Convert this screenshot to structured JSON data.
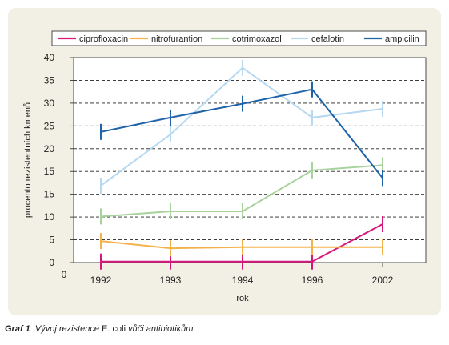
{
  "chart_data": {
    "type": "line",
    "title": "",
    "xlabel": "rok",
    "ylabel": "procento rezistentních kmenů",
    "categories": [
      "1992",
      "1993",
      "1994",
      "1996",
      "2002"
    ],
    "ylim": [
      0,
      40
    ],
    "yticks": [
      "0",
      "5",
      "10",
      "15",
      "15",
      "20",
      "25",
      "30",
      "35",
      "40"
    ],
    "x_origin_label": "0",
    "grid": "horizontal dashed",
    "legend_position": "top",
    "error_bars": true,
    "series": [
      {
        "name": "ciprofloxacin",
        "color": "#d6187a",
        "values": [
          0.2,
          0.2,
          0.2,
          0.2,
          7.5
        ]
      },
      {
        "name": "nitrofurantion",
        "color": "#f6b24a",
        "values": [
          4.2,
          2.8,
          3.0,
          3.0,
          3.0
        ]
      },
      {
        "name": "cotrimoxazol",
        "color": "#a8d29c",
        "values": [
          9.0,
          10.0,
          10.0,
          18.0,
          19.0
        ]
      },
      {
        "name": "cefalotin",
        "color": "#b6d8f0",
        "values": [
          15.0,
          25.0,
          38.0,
          28.3,
          30.0
        ]
      },
      {
        "name": "ampicilin",
        "color": "#1e63a8",
        "values": [
          25.5,
          28.3,
          31.0,
          33.8,
          16.5
        ]
      }
    ]
  },
  "caption": {
    "label": "Graf 1",
    "text_before": "Vývoj rezistence ",
    "organism": "E. coli",
    "text_after": " vůči antibiotikům."
  }
}
